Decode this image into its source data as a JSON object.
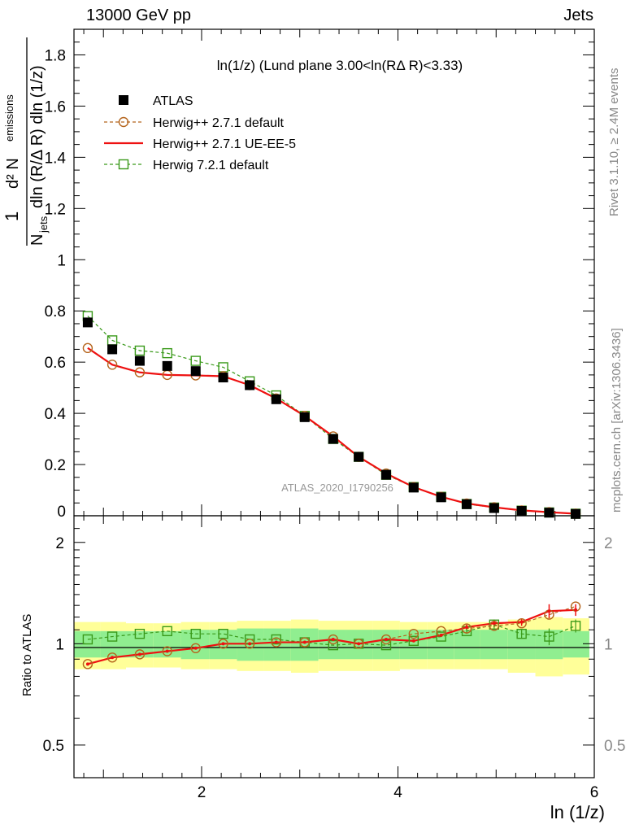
{
  "header": {
    "left": "13000 GeV pp",
    "right": "Jets"
  },
  "main_panel": {
    "title": "ln(1/z) (Lund plane 3.00<ln(RΔ R)<3.33)",
    "ylabel_num": "d² N",
    "ylabel_num_sub": "emissions",
    "ylabel_den": "N",
    "ylabel_den_sub": "jets",
    "ylabel_den_rest": "dln (R/Δ R) dln (1/z)",
    "ylabel_prefix": "1",
    "yticks": [
      "0",
      "0.2",
      "0.4",
      "0.6",
      "0.8",
      "1",
      "1.2",
      "1.4",
      "1.6",
      "1.8"
    ],
    "watermark": "ATLAS_2020_I1790256"
  },
  "ratio_panel": {
    "ylabel": "Ratio to ATLAS",
    "yticks": [
      "0.5",
      "1",
      "2"
    ]
  },
  "xaxis": {
    "label": "ln (1/z)",
    "ticks": [
      "2",
      "4",
      "6"
    ]
  },
  "side_text": {
    "rivet": "Rivet 3.1.10, ≥ 2.4M events",
    "mcplots": "mcplots.cern.ch [arXiv:1306.3436]"
  },
  "legend": [
    {
      "label": "ATLAS",
      "color": "#000000",
      "style": "square-filled"
    },
    {
      "label": "Herwig++ 2.7.1 default",
      "color": "#b5651d",
      "style": "circle-dashed"
    },
    {
      "label": "Herwig++ 2.7.1 UE-EE-5",
      "color": "#ee1111",
      "style": "solid-line"
    },
    {
      "label": "Herwig 7.2.1 default",
      "color": "#3a9a1a",
      "style": "square-dashed"
    }
  ],
  "chart_data": {
    "type": "line",
    "xlim": [
      0.7,
      6.0
    ],
    "ylim": [
      0,
      1.9
    ],
    "ratio_ylim": [
      0.4,
      2.4
    ],
    "ratio_scale": "log",
    "x": [
      0.84,
      1.09,
      1.37,
      1.65,
      1.94,
      2.22,
      2.49,
      2.76,
      3.05,
      3.34,
      3.6,
      3.88,
      4.16,
      4.44,
      4.7,
      4.98,
      5.26,
      5.54,
      5.81
    ],
    "band_edges": [
      0.7,
      0.97,
      1.23,
      1.51,
      1.79,
      2.08,
      2.36,
      2.63,
      2.91,
      3.19,
      3.47,
      3.74,
      4.02,
      4.3,
      4.57,
      4.84,
      5.12,
      5.4,
      5.68,
      5.95
    ],
    "series": [
      {
        "name": "ATLAS",
        "values": [
          0.755,
          0.65,
          0.605,
          0.585,
          0.565,
          0.54,
          0.51,
          0.455,
          0.385,
          0.3,
          0.23,
          0.16,
          0.11,
          0.072,
          0.045,
          0.03,
          0.019,
          0.012,
          0.007
        ]
      },
      {
        "name": "Herwig++ 2.7.1 default",
        "values": [
          0.655,
          0.59,
          0.56,
          0.55,
          0.548,
          0.545,
          0.51,
          0.458,
          0.39,
          0.31,
          0.23,
          0.165,
          0.112,
          0.074,
          0.048,
          0.033,
          0.021,
          0.014,
          0.008
        ]
      },
      {
        "name": "Herwig++ 2.7.1 UE-EE-5",
        "values": [
          0.655,
          0.59,
          0.56,
          0.55,
          0.548,
          0.545,
          0.51,
          0.458,
          0.39,
          0.31,
          0.23,
          0.165,
          0.112,
          0.074,
          0.048,
          0.033,
          0.021,
          0.014,
          0.008
        ]
      },
      {
        "name": "Herwig 7.2.1 default",
        "values": [
          0.78,
          0.685,
          0.645,
          0.635,
          0.605,
          0.58,
          0.525,
          0.47,
          0.39,
          0.3,
          0.23,
          0.16,
          0.112,
          0.074,
          0.046,
          0.032,
          0.02,
          0.013,
          0.008
        ]
      }
    ],
    "ratios": [
      {
        "name": "Herwig++ 2.7.1 default",
        "values": [
          0.87,
          0.91,
          0.93,
          0.95,
          0.97,
          1.0,
          1.0,
          1.01,
          1.01,
          1.03,
          1.0,
          1.03,
          1.07,
          1.09,
          1.11,
          1.13,
          1.15,
          1.22,
          1.29
        ]
      },
      {
        "name": "Herwig++ 2.7.1 UE-EE-5",
        "values": [
          0.87,
          0.91,
          0.93,
          0.95,
          0.97,
          1.0,
          1.0,
          1.01,
          1.01,
          1.03,
          1.0,
          1.03,
          1.02,
          1.06,
          1.12,
          1.15,
          1.16,
          1.25,
          1.26
        ]
      },
      {
        "name": "Herwig 7.2.1 default",
        "values": [
          1.03,
          1.05,
          1.07,
          1.09,
          1.07,
          1.07,
          1.03,
          1.03,
          1.01,
          0.99,
          1.0,
          0.99,
          1.02,
          1.05,
          1.09,
          1.14,
          1.07,
          1.05,
          1.13
        ]
      }
    ],
    "ratio_errors": [
      0,
      0,
      0,
      0,
      0,
      0,
      0,
      0,
      0,
      0,
      0,
      0,
      0,
      0,
      0.02,
      0.03,
      0.03,
      0.06,
      0.05
    ],
    "band_stat": [
      0.09,
      0.09,
      0.09,
      0.09,
      0.1,
      0.1,
      0.11,
      0.11,
      0.11,
      0.1,
      0.1,
      0.1,
      0.1,
      0.1,
      0.1,
      0.1,
      0.1,
      0.1,
      0.09
    ],
    "band_tot": [
      0.16,
      0.16,
      0.15,
      0.15,
      0.16,
      0.16,
      0.17,
      0.17,
      0.18,
      0.17,
      0.17,
      0.17,
      0.16,
      0.16,
      0.16,
      0.16,
      0.18,
      0.2,
      0.19
    ],
    "grid": false,
    "legend_position": "top-left",
    "colors": {
      "band_inner": "#90ee90",
      "band_outer": "#ffff99",
      "atlas": "#000000",
      "herwig_default": "#b5651d",
      "herwig_ueee5": "#ee1111",
      "herwig7": "#3a9a1a"
    }
  }
}
